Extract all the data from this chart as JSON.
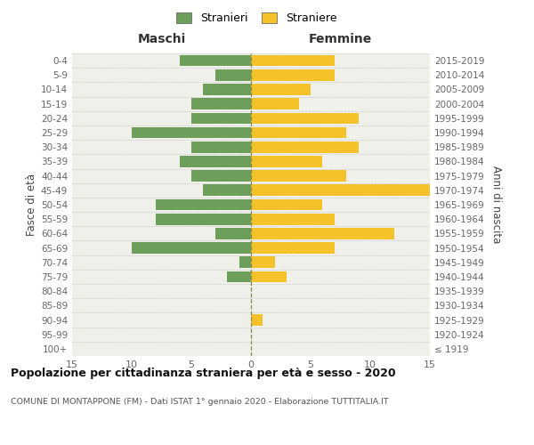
{
  "age_groups": [
    "100+",
    "95-99",
    "90-94",
    "85-89",
    "80-84",
    "75-79",
    "70-74",
    "65-69",
    "60-64",
    "55-59",
    "50-54",
    "45-49",
    "40-44",
    "35-39",
    "30-34",
    "25-29",
    "20-24",
    "15-19",
    "10-14",
    "5-9",
    "0-4"
  ],
  "birth_years": [
    "≤ 1919",
    "1920-1924",
    "1925-1929",
    "1930-1934",
    "1935-1939",
    "1940-1944",
    "1945-1949",
    "1950-1954",
    "1955-1959",
    "1960-1964",
    "1965-1969",
    "1970-1974",
    "1975-1979",
    "1980-1984",
    "1985-1989",
    "1990-1994",
    "1995-1999",
    "2000-2004",
    "2005-2009",
    "2010-2014",
    "2015-2019"
  ],
  "maschi": [
    0,
    0,
    0,
    0,
    0,
    2,
    1,
    10,
    3,
    8,
    8,
    4,
    5,
    6,
    5,
    10,
    5,
    5,
    4,
    3,
    6
  ],
  "femmine": [
    0,
    0,
    1,
    0,
    0,
    3,
    2,
    7,
    12,
    7,
    6,
    15,
    8,
    6,
    9,
    8,
    9,
    4,
    5,
    7,
    7
  ],
  "maschi_color": "#6d9e5a",
  "femmine_color": "#f5c229",
  "title": "Popolazione per cittadinanza straniera per età e sesso - 2020",
  "subtitle": "COMUNE DI MONTAPPONE (FM) - Dati ISTAT 1° gennaio 2020 - Elaborazione TUTTITALIA.IT",
  "ylabel_left": "Fasce di età",
  "ylabel_right": "Anni di nascita",
  "xlabel_maschi": "Maschi",
  "xlabel_femmine": "Femmine",
  "legend_maschi": "Stranieri",
  "legend_femmine": "Straniere",
  "xlim": 15,
  "background_color": "#ffffff",
  "plot_bg_color": "#f0f0eb"
}
